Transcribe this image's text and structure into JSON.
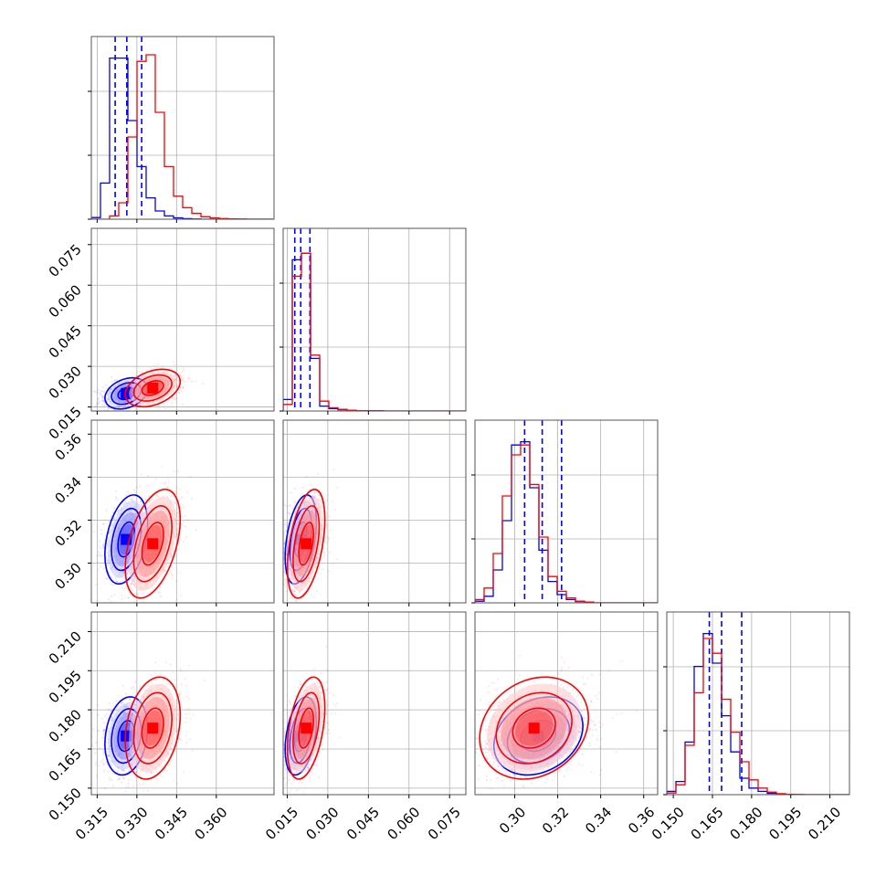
{
  "chart_data": {
    "type": "corner",
    "grid": true,
    "parameters": [
      {
        "ticks": [
          0.315,
          0.33,
          0.345,
          0.36
        ],
        "tick_labels": [
          "0.315",
          "0.330",
          "0.345",
          "0.360"
        ],
        "range": [
          0.3128,
          0.3818
        ]
      },
      {
        "ticks": [
          0.015,
          0.03,
          0.045,
          0.06,
          0.075
        ],
        "tick_labels": [
          "0.015",
          "0.030",
          "0.045",
          "0.060",
          "0.075"
        ],
        "range": [
          0.0135,
          0.081
        ]
      },
      {
        "ticks": [
          0.3,
          0.32,
          0.34,
          0.36
        ],
        "tick_labels": [
          "0.30",
          "0.32",
          "0.34",
          "0.36"
        ],
        "range": [
          0.2815,
          0.3665
        ]
      },
      {
        "ticks": [
          0.15,
          0.165,
          0.18,
          0.195,
          0.21
        ],
        "tick_labels": [
          "0.150",
          "0.165",
          "0.180",
          "0.195",
          "0.210"
        ],
        "range": [
          0.1475,
          0.2175
        ]
      }
    ],
    "series": [
      {
        "color": "#0000ff",
        "quantiles": [
          [
            0.3218,
            0.3262,
            0.3318
          ],
          [
            0.0178,
            0.02,
            0.0234
          ],
          [
            0.3046,
            0.3128,
            0.3218
          ],
          [
            0.1638,
            0.1685,
            0.1762
          ]
        ],
        "mean": [
          0.326,
          0.02,
          0.311,
          0.17
        ],
        "std": [
          0.0035,
          0.0025,
          0.009,
          0.0065
        ],
        "corr": [
          [
            1,
            0.3,
            0.35,
            0.2
          ],
          [
            0.3,
            1,
            0.4,
            0.35
          ],
          [
            0.35,
            0.4,
            1,
            0.25
          ],
          [
            0.2,
            0.35,
            0.25,
            1
          ]
        ],
        "hist": [
          [
            0.01,
            0.22,
            0.98,
            0.98,
            0.6,
            0.32,
            0.13,
            0.05,
            0.02,
            0.008,
            0.003,
            0.001,
            0,
            0,
            0,
            0,
            0,
            0,
            0,
            0
          ],
          [
            0.07,
            0.92,
            0.96,
            0.32,
            0.03,
            0.015,
            0.008,
            0.004,
            0.002,
            0.001,
            0.001,
            0,
            0,
            0,
            0,
            0,
            0,
            0,
            0,
            0
          ],
          [
            0.01,
            0.04,
            0.2,
            0.5,
            0.96,
            0.98,
            0.7,
            0.32,
            0.13,
            0.05,
            0.02,
            0.008,
            0.003,
            0,
            0,
            0,
            0,
            0,
            0,
            0
          ],
          [
            0.02,
            0.08,
            0.32,
            0.78,
            0.98,
            0.8,
            0.48,
            0.26,
            0.1,
            0.04,
            0.02,
            0.008,
            0.003,
            0,
            0,
            0,
            0,
            0,
            0,
            0
          ]
        ]
      },
      {
        "color": "#ff0000",
        "quantiles": [],
        "mean": [
          0.336,
          0.022,
          0.309,
          0.173
        ],
        "std": [
          0.0045,
          0.003,
          0.011,
          0.0085
        ],
        "corr": [
          [
            1,
            0.35,
            0.45,
            0.25
          ],
          [
            0.35,
            1,
            0.45,
            0.4
          ],
          [
            0.45,
            0.45,
            1,
            0.2
          ],
          [
            0.25,
            0.4,
            0.2,
            1
          ]
        ],
        "hist": [
          [
            0,
            0,
            0.02,
            0.1,
            0.5,
            0.96,
            1.0,
            0.65,
            0.32,
            0.14,
            0.07,
            0.035,
            0.015,
            0.008,
            0.004,
            0.002,
            0.001,
            0,
            0,
            0
          ],
          [
            0.04,
            0.82,
            0.96,
            0.34,
            0.06,
            0.02,
            0.01,
            0.005,
            0.002,
            0.001,
            0.001,
            0,
            0,
            0,
            0,
            0,
            0,
            0,
            0,
            0
          ],
          [
            0.02,
            0.09,
            0.3,
            0.65,
            0.9,
            0.96,
            0.72,
            0.4,
            0.16,
            0.07,
            0.03,
            0.01,
            0.005,
            0,
            0,
            0,
            0,
            0,
            0,
            0
          ],
          [
            0.01,
            0.06,
            0.3,
            0.62,
            0.95,
            0.86,
            0.58,
            0.38,
            0.2,
            0.09,
            0.04,
            0.015,
            0.006,
            0.002,
            0.001,
            0,
            0,
            0,
            0,
            0
          ]
        ]
      }
    ]
  }
}
